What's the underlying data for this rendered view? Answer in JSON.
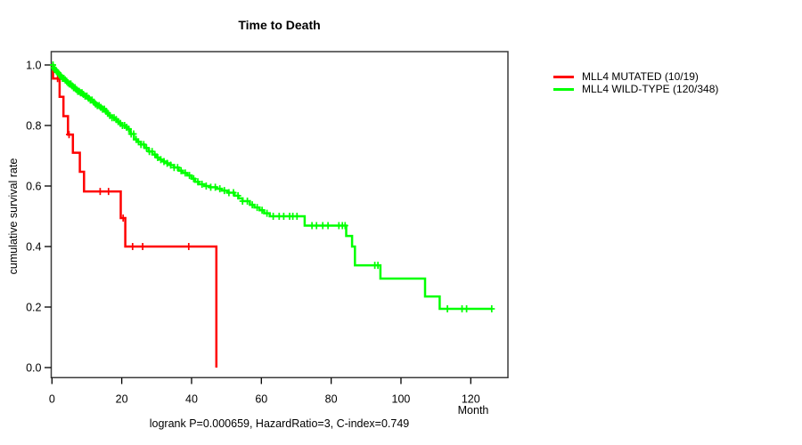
{
  "figure": {
    "title": "Time to Death",
    "x_axis_label": "Month",
    "y_axis_label": "cumulative survival rate",
    "caption": "logrank P=0.000659, HazardRatio=3, C-index=0.749"
  },
  "chart_data": {
    "type": "line",
    "subtype": "kaplan-meier-step-curve",
    "title": "Time to Death",
    "xlabel": "Month",
    "ylabel": "cumulative survival rate",
    "xlim": [
      0,
      131
    ],
    "ylim": [
      0,
      1.0
    ],
    "x_ticks": [
      0,
      20,
      40,
      60,
      80,
      100,
      120
    ],
    "y_ticks": [
      0.0,
      0.2,
      0.4,
      0.6,
      0.8,
      1.0
    ],
    "grid": false,
    "legend_position": "right-outside",
    "annotation": "logrank P=0.000659, HazardRatio=3, C-index=0.749",
    "axis_color": "#3a3a3a",
    "series": [
      {
        "name": "MLL4 MUTATED (10/19)",
        "color": "#ff0000",
        "points": [
          [
            0,
            1.0
          ],
          [
            0.3,
            0.955
          ],
          [
            2.2,
            0.895
          ],
          [
            3.3,
            0.831
          ],
          [
            4.6,
            0.77
          ],
          [
            6.0,
            0.71
          ],
          [
            8.0,
            0.647
          ],
          [
            9.2,
            0.582
          ],
          [
            19.7,
            0.494
          ],
          [
            21.0,
            0.4
          ],
          [
            47.1,
            0.0
          ]
        ],
        "censor_marks": [
          1.6,
          4.9,
          13.8,
          16.2,
          20.4,
          23.1,
          26.0,
          39.2
        ]
      },
      {
        "name": "MLL4 WILD-TYPE (120/348)",
        "color": "#00ff00",
        "points": [
          [
            0,
            1.0
          ],
          [
            0.4,
            0.991
          ],
          [
            0.8,
            0.985
          ],
          [
            1.2,
            0.979
          ],
          [
            1.6,
            0.974
          ],
          [
            2.0,
            0.968
          ],
          [
            2.5,
            0.962
          ],
          [
            3.0,
            0.956
          ],
          [
            3.5,
            0.951
          ],
          [
            4.0,
            0.946
          ],
          [
            4.5,
            0.941
          ],
          [
            5.0,
            0.937
          ],
          [
            5.6,
            0.931
          ],
          [
            6.2,
            0.925
          ],
          [
            6.8,
            0.919
          ],
          [
            7.4,
            0.913
          ],
          [
            8.0,
            0.908
          ],
          [
            8.7,
            0.903
          ],
          [
            9.4,
            0.897
          ],
          [
            10.1,
            0.89
          ],
          [
            10.8,
            0.884
          ],
          [
            11.6,
            0.877
          ],
          [
            12.3,
            0.871
          ],
          [
            13.0,
            0.866
          ],
          [
            13.7,
            0.86
          ],
          [
            14.4,
            0.854
          ],
          [
            15.1,
            0.847
          ],
          [
            15.8,
            0.84
          ],
          [
            16.5,
            0.833
          ],
          [
            17.2,
            0.826
          ],
          [
            17.9,
            0.82
          ],
          [
            18.6,
            0.813
          ],
          [
            19.3,
            0.807
          ],
          [
            20.1,
            0.8
          ],
          [
            20.9,
            0.794
          ],
          [
            21.8,
            0.788
          ],
          [
            22.5,
            0.772
          ],
          [
            23.5,
            0.754
          ],
          [
            24.5,
            0.746
          ],
          [
            25.5,
            0.737
          ],
          [
            26.5,
            0.726
          ],
          [
            27.7,
            0.714
          ],
          [
            28.8,
            0.704
          ],
          [
            30.0,
            0.694
          ],
          [
            31.0,
            0.687
          ],
          [
            32.0,
            0.681
          ],
          [
            33.0,
            0.675
          ],
          [
            34.0,
            0.669
          ],
          [
            35.0,
            0.661
          ],
          [
            36.3,
            0.651
          ],
          [
            37.5,
            0.643
          ],
          [
            38.8,
            0.635
          ],
          [
            40.0,
            0.624
          ],
          [
            41.0,
            0.614
          ],
          [
            42.1,
            0.606
          ],
          [
            43.6,
            0.6
          ],
          [
            45.2,
            0.596
          ],
          [
            47.2,
            0.591
          ],
          [
            48.7,
            0.585
          ],
          [
            50.3,
            0.578
          ],
          [
            52.3,
            0.568
          ],
          [
            53.4,
            0.559
          ],
          [
            54.6,
            0.55
          ],
          [
            56.7,
            0.538
          ],
          [
            58.0,
            0.529
          ],
          [
            59.5,
            0.52
          ],
          [
            60.8,
            0.51
          ],
          [
            62.4,
            0.5
          ],
          [
            72.4,
            0.469
          ],
          [
            84.3,
            0.435
          ],
          [
            86.0,
            0.4
          ],
          [
            86.8,
            0.338
          ],
          [
            94.1,
            0.294
          ],
          [
            106.9,
            0.235
          ],
          [
            111.1,
            0.194
          ],
          [
            126.2,
            0.194
          ]
        ],
        "censor_marks": [
          0.3,
          0.5,
          0.8,
          1.3,
          1.8,
          2.2,
          2.6,
          3.0,
          3.4,
          3.8,
          4.2,
          4.6,
          5.0,
          5.4,
          5.8,
          6.2,
          6.6,
          7.0,
          7.4,
          7.8,
          8.2,
          8.6,
          9.0,
          9.5,
          10.0,
          10.5,
          11.0,
          11.5,
          12.0,
          12.5,
          13.0,
          13.5,
          14.0,
          14.5,
          15.0,
          15.5,
          16.0,
          16.6,
          17.2,
          17.8,
          18.4,
          19.0,
          19.6,
          20.2,
          20.8,
          21.4,
          22.0,
          22.7,
          23.4,
          24.1,
          24.8,
          25.5,
          26.3,
          27.1,
          27.9,
          28.7,
          29.5,
          30.3,
          31.2,
          32.1,
          33.0,
          34.0,
          35.0,
          36.0,
          37.0,
          38.2,
          39.4,
          40.6,
          41.8,
          43.0,
          44.2,
          45.5,
          46.8,
          48.1,
          49.4,
          50.7,
          52.0,
          53.3,
          54.6,
          56.0,
          57.4,
          58.8,
          60.2,
          61.6,
          63.4,
          65.1,
          66.4,
          68.1,
          69.0,
          70.2,
          74.5,
          75.8,
          77.6,
          79.1,
          82.2,
          83.2,
          84.0,
          92.5,
          93.4,
          113.3,
          117.5,
          118.8,
          126.0
        ]
      }
    ]
  }
}
